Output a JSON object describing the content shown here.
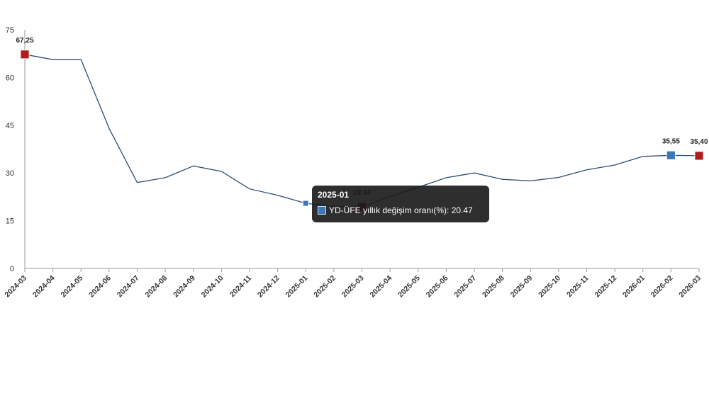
{
  "chart_data": {
    "type": "line",
    "title": "",
    "xlabel": "",
    "ylabel": "",
    "ylim": [
      0,
      75
    ],
    "yticks": [
      0,
      15,
      30,
      45,
      60,
      75
    ],
    "grid": false,
    "legend": "none",
    "categories": [
      "2024-03",
      "2024-04",
      "2024-05",
      "2024-06",
      "2024-07",
      "2024-08",
      "2024-09",
      "2024-10",
      "2024-11",
      "2024-12",
      "2025-01",
      "2025-02",
      "2025-03",
      "2025-04",
      "2025-05",
      "2025-06",
      "2025-07",
      "2025-08",
      "2025-09",
      "2025-10",
      "2025-11",
      "2025-12",
      "2026-01",
      "2026-02",
      "2026-03"
    ],
    "series": [
      {
        "name": "YD-ÜFE yıllık değişim oranı(%)",
        "color": "#2f4f6f",
        "values": [
          67.25,
          65.6,
          65.6,
          44.0,
          27.0,
          28.5,
          32.2,
          30.5,
          25.0,
          23.0,
          20.47,
          19.5,
          19.34,
          22.5,
          25.5,
          28.5,
          30.0,
          28.0,
          27.5,
          28.6,
          31.0,
          32.5,
          35.2,
          35.55,
          35.4
        ]
      }
    ],
    "data_labels": [
      {
        "category": "2024-03",
        "text": "67,25",
        "marker_color": "#b01c1c"
      },
      {
        "category": "2025-03",
        "text": "19,34",
        "marker_color": "#7a0c0c"
      },
      {
        "category": "2026-02",
        "text": "35,55",
        "marker_color": "#3a78b8"
      },
      {
        "category": "2026-03",
        "text": "35,40",
        "marker_color": "#b01c1c"
      }
    ],
    "tooltip": {
      "title": "2025-01",
      "text": "YD-ÜFE yıllık değişim oranı(%): 20.47",
      "category": "2025-01"
    }
  }
}
